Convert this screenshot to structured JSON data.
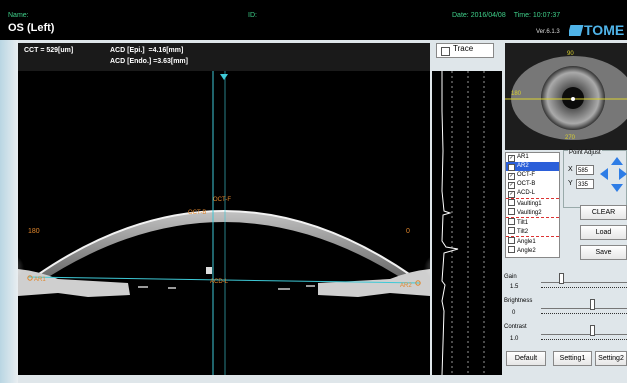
{
  "header": {
    "name_label": "Name:",
    "eye_side": "OS (Left)",
    "id_label": "ID:",
    "date_label": "Date:",
    "date_value": "2016/04/08",
    "time_label": "Time:",
    "time_value": "10:07:37",
    "version": "Ver.6.1.3",
    "brand": "TOME"
  },
  "measurements": {
    "cct": "CCT = 529[um]",
    "acd_epi": "ACD [Epi.]  =4.16[mm]",
    "acd_endo": "ACD [Endo.] =3.63[mm]"
  },
  "scan": {
    "label_left": "180",
    "label_right": "0",
    "label_oct_f": "OCT-F",
    "label_oct_b": "OCT-B",
    "label_ar1": "AR1",
    "label_ar2": "AR2",
    "label_acd_l": "ACD-L"
  },
  "trace": {
    "label": "Trace"
  },
  "eye_image": {
    "top_label": "90",
    "left_label": "180",
    "bottom_label": "270"
  },
  "checklist": [
    {
      "label": "AR1",
      "checked": true,
      "selected": false,
      "sep": false
    },
    {
      "label": "AR2",
      "checked": true,
      "selected": true,
      "sep": false
    },
    {
      "label": "OCT-F",
      "checked": true,
      "selected": false,
      "sep": false
    },
    {
      "label": "OCT-B",
      "checked": true,
      "selected": false,
      "sep": false
    },
    {
      "label": "ACD-L",
      "checked": true,
      "selected": false,
      "sep": true
    },
    {
      "label": "Vaulting1",
      "checked": false,
      "selected": false,
      "sep": false
    },
    {
      "label": "Vaulting2",
      "checked": false,
      "selected": false,
      "sep": true
    },
    {
      "label": "Tilt1",
      "checked": false,
      "selected": false,
      "sep": false
    },
    {
      "label": "Tilt2",
      "checked": false,
      "selected": false,
      "sep": true
    },
    {
      "label": "Angle1",
      "checked": false,
      "selected": false,
      "sep": false
    },
    {
      "label": "Angle2",
      "checked": false,
      "selected": false,
      "sep": false
    }
  ],
  "point_adjust": {
    "title": "Point Adjust",
    "x_label": "X",
    "x_value": "585",
    "y_label": "Y",
    "y_value": "335"
  },
  "buttons": {
    "clear": "CLEAR",
    "load": "Load",
    "save": "Save",
    "default": "Default",
    "setting1": "Setting1",
    "setting2": "Setting2"
  },
  "sliders": {
    "gain_label": "Gain",
    "gain_value": "1.5",
    "brightness_label": "Brightness",
    "brightness_value": "0",
    "contrast_label": "Contrast",
    "contrast_value": "1.0"
  },
  "colors": {
    "accent_green": "#3fd08a",
    "brand_blue": "#4fb3e8",
    "selection_blue": "#2b5fd9",
    "overlay_cyan": "#3ec9d6",
    "overlay_orange": "#e0862c"
  }
}
